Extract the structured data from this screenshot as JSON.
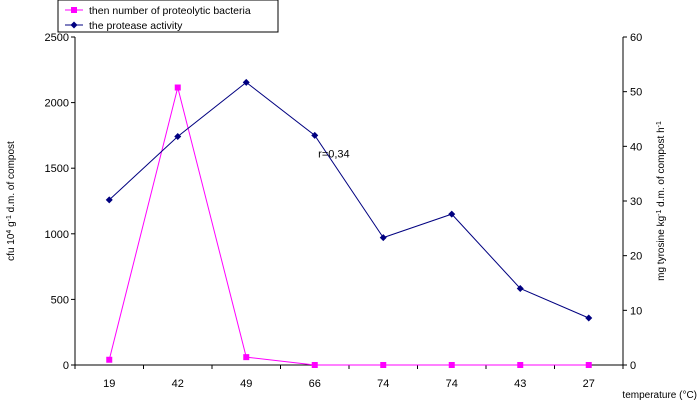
{
  "chart_data": {
    "type": "line",
    "categories": [
      "19",
      "42",
      "49",
      "66",
      "74",
      "74",
      "43",
      "27"
    ],
    "xlabel": "temperature (°C)",
    "ylabel_left": {
      "base": "cfu 10",
      "sup1": "4",
      "mid": " g",
      "sup2": "-1",
      "tail": " d.m. of compost"
    },
    "ylabel_right": {
      "base": "mg tyrosine  kg",
      "sup1": "-1",
      "mid": " d.m. of compost  h",
      "sup2": "-1",
      "tail": ""
    },
    "ylim_left": [
      0,
      2500
    ],
    "yticks_left": [
      0,
      500,
      1000,
      1500,
      2000,
      2500
    ],
    "ylim_right": [
      0,
      60
    ],
    "yticks_right": [
      0,
      10,
      20,
      30,
      40,
      50,
      60
    ],
    "series": [
      {
        "name": "then number of proteolytic bacteria",
        "axis": "left",
        "color": "#ff00ff",
        "marker": "square",
        "values": [
          40,
          2115,
          60,
          0,
          0,
          0,
          0,
          0
        ]
      },
      {
        "name": "the protease activity",
        "axis": "right",
        "color": "#000080",
        "marker": "diamond",
        "values": [
          30.2,
          41.8,
          51.7,
          42,
          23.3,
          27.6,
          14,
          8.6
        ]
      }
    ],
    "annotation": {
      "text": "r=0,34",
      "category_index": 3.55,
      "y_right": 38
    },
    "legend": "top-left",
    "grid": false
  }
}
